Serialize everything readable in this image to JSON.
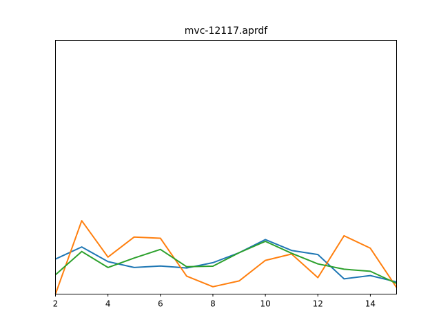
{
  "chart_data": {
    "type": "line",
    "title": "mvc-12117.aprdf",
    "xlabel": "",
    "ylabel": "",
    "xlim": [
      2,
      15
    ],
    "ylim": [
      0,
      1
    ],
    "y_ticks_shown": false,
    "grid": false,
    "legend": "none",
    "x_ticks": [
      "2",
      "4",
      "6",
      "8",
      "10",
      "12",
      "14"
    ],
    "x": [
      2,
      3,
      4,
      5,
      6,
      7,
      8,
      9,
      10,
      11,
      12,
      13,
      14,
      15
    ],
    "series": [
      {
        "color": "#1f77b4",
        "values": [
          0.138,
          0.186,
          0.128,
          0.105,
          0.111,
          0.103,
          0.124,
          0.163,
          0.215,
          0.172,
          0.156,
          0.06,
          0.073,
          0.048
        ]
      },
      {
        "color": "#ff7f0e",
        "values": [
          0.0,
          0.289,
          0.146,
          0.225,
          0.22,
          0.071,
          0.029,
          0.052,
          0.133,
          0.158,
          0.065,
          0.23,
          0.181,
          0.026
        ]
      },
      {
        "color": "#2ca02c",
        "values": [
          0.076,
          0.168,
          0.105,
          0.142,
          0.176,
          0.108,
          0.11,
          0.163,
          0.208,
          0.161,
          0.119,
          0.098,
          0.09,
          0.042
        ]
      }
    ]
  }
}
